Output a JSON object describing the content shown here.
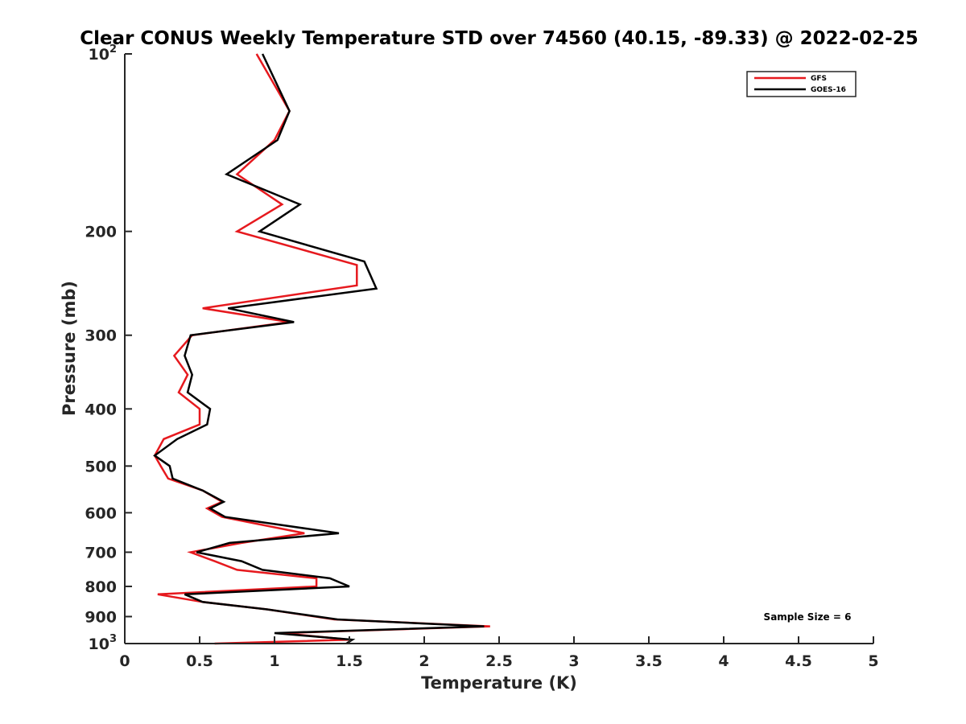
{
  "chart_data": {
    "type": "line",
    "title": "Clear CONUS Weekly Temperature STD over 74560 (40.15, -89.33) @ 2022-02-25",
    "xlabel": "Temperature (K)",
    "ylabel": "Pressure (mb)",
    "xlim": [
      0,
      5
    ],
    "ylim": [
      100,
      1000
    ],
    "y_scale": "log",
    "y_reversed": true,
    "x_ticks": [
      "0",
      "0.5",
      "1",
      "1.5",
      "2",
      "2.5",
      "3",
      "3.5",
      "4",
      "4.5",
      "5"
    ],
    "x_tick_values": [
      0,
      0.5,
      1,
      1.5,
      2,
      2.5,
      3,
      3.5,
      4,
      4.5,
      5
    ],
    "y_ticks": [
      {
        "value": 100,
        "base": "10",
        "exp": "2"
      },
      {
        "value": 200,
        "label": "200"
      },
      {
        "value": 300,
        "label": "300"
      },
      {
        "value": 400,
        "label": "400"
      },
      {
        "value": 500,
        "label": "500"
      },
      {
        "value": 600,
        "label": "600"
      },
      {
        "value": 700,
        "label": "700"
      },
      {
        "value": 800,
        "label": "800"
      },
      {
        "value": 900,
        "label": "900"
      },
      {
        "value": 1000,
        "base": "10",
        "exp": "3"
      }
    ],
    "grid": false,
    "legend_position": "top-right",
    "annotation": "Sample Size = 6",
    "series": [
      {
        "name": "GFS",
        "color": "#e6191e",
        "points": [
          [
            0.88,
            100
          ],
          [
            1.1,
            125
          ],
          [
            1.0,
            140
          ],
          [
            0.75,
            160
          ],
          [
            1.05,
            180
          ],
          [
            0.75,
            200
          ],
          [
            1.55,
            228
          ],
          [
            1.55,
            247
          ],
          [
            0.52,
            270
          ],
          [
            1.1,
            285
          ],
          [
            0.45,
            300
          ],
          [
            0.33,
            325
          ],
          [
            0.42,
            350
          ],
          [
            0.36,
            375
          ],
          [
            0.5,
            400
          ],
          [
            0.5,
            425
          ],
          [
            0.26,
            450
          ],
          [
            0.2,
            480
          ],
          [
            0.24,
            500
          ],
          [
            0.29,
            525
          ],
          [
            0.52,
            550
          ],
          [
            0.65,
            575
          ],
          [
            0.55,
            590
          ],
          [
            0.65,
            610
          ],
          [
            1.2,
            650
          ],
          [
            0.78,
            675
          ],
          [
            0.44,
            700
          ],
          [
            0.6,
            725
          ],
          [
            0.75,
            750
          ],
          [
            1.28,
            775
          ],
          [
            1.28,
            800
          ],
          [
            0.22,
            825
          ],
          [
            0.52,
            850
          ],
          [
            0.95,
            875
          ],
          [
            1.4,
            910
          ],
          [
            2.44,
            935
          ],
          [
            1.05,
            960
          ],
          [
            1.5,
            985
          ],
          [
            0.6,
            1000
          ]
        ]
      },
      {
        "name": "GOES-16",
        "color": "#000000",
        "points": [
          [
            0.92,
            100
          ],
          [
            1.1,
            125
          ],
          [
            1.02,
            140
          ],
          [
            0.68,
            160
          ],
          [
            1.17,
            180
          ],
          [
            0.9,
            200
          ],
          [
            1.6,
            225
          ],
          [
            1.68,
            250
          ],
          [
            0.69,
            270
          ],
          [
            1.13,
            285
          ],
          [
            0.44,
            300
          ],
          [
            0.4,
            325
          ],
          [
            0.45,
            350
          ],
          [
            0.42,
            375
          ],
          [
            0.57,
            400
          ],
          [
            0.55,
            425
          ],
          [
            0.35,
            450
          ],
          [
            0.2,
            480
          ],
          [
            0.3,
            500
          ],
          [
            0.32,
            525
          ],
          [
            0.52,
            550
          ],
          [
            0.66,
            575
          ],
          [
            0.57,
            590
          ],
          [
            0.67,
            610
          ],
          [
            1.43,
            650
          ],
          [
            0.7,
            675
          ],
          [
            0.48,
            700
          ],
          [
            0.78,
            725
          ],
          [
            0.92,
            750
          ],
          [
            1.37,
            775
          ],
          [
            1.5,
            800
          ],
          [
            0.4,
            825
          ],
          [
            0.52,
            850
          ],
          [
            0.95,
            875
          ],
          [
            1.42,
            910
          ],
          [
            2.4,
            935
          ],
          [
            1.0,
            960
          ],
          [
            1.52,
            985
          ],
          [
            1.48,
            1000
          ]
        ]
      }
    ]
  }
}
